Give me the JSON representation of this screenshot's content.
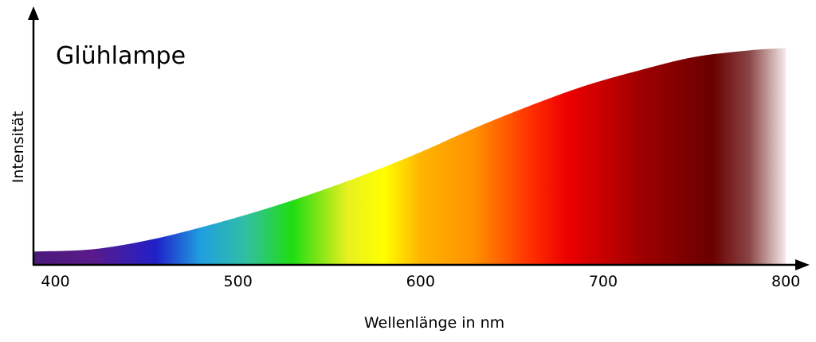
{
  "chart_data": {
    "type": "area",
    "title": "Glühlampe",
    "xlabel": "Wellenlänge in nm",
    "ylabel": "Intensität",
    "x_ticks": [
      400,
      500,
      600,
      700,
      800
    ],
    "xlim": [
      388,
      803
    ],
    "ylim": [
      0,
      1
    ],
    "grid": false,
    "legend": "none",
    "series": [
      {
        "x": [
          388,
          420,
          450,
          480,
          510,
          540,
          570,
          600,
          630,
          660,
          690,
          720,
          750,
          780,
          800
        ],
        "y": [
          0.06,
          0.07,
          0.11,
          0.17,
          0.24,
          0.32,
          0.41,
          0.51,
          0.62,
          0.72,
          0.81,
          0.88,
          0.94,
          0.97,
          0.98
        ]
      }
    ],
    "spectrum_colors": [
      {
        "nm": 388,
        "color": "#4a1a7a"
      },
      {
        "nm": 420,
        "color": "#5a1a8a"
      },
      {
        "nm": 455,
        "color": "#2020c8"
      },
      {
        "nm": 480,
        "color": "#20a0e0"
      },
      {
        "nm": 505,
        "color": "#30c0a0"
      },
      {
        "nm": 530,
        "color": "#20dd10"
      },
      {
        "nm": 560,
        "color": "#e8f020"
      },
      {
        "nm": 580,
        "color": "#ffff00"
      },
      {
        "nm": 600,
        "color": "#ffb400"
      },
      {
        "nm": 630,
        "color": "#ff9000"
      },
      {
        "nm": 660,
        "color": "#ff3000"
      },
      {
        "nm": 680,
        "color": "#ee0000"
      },
      {
        "nm": 720,
        "color": "#a00000"
      },
      {
        "nm": 760,
        "color": "#6a0000"
      },
      {
        "nm": 780,
        "color": "#8a4545"
      },
      {
        "nm": 800,
        "color": "#f6eaea"
      }
    ]
  }
}
